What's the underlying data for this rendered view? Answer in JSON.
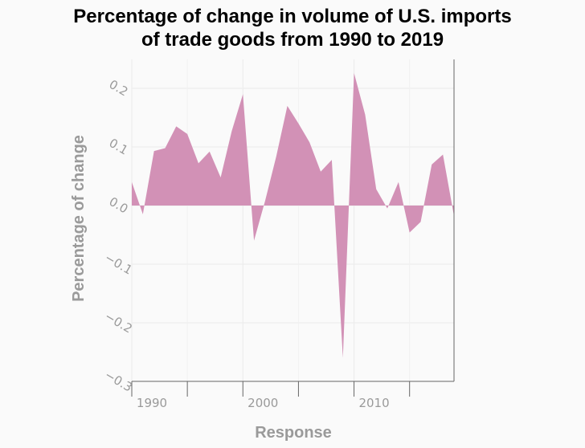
{
  "chart_data": {
    "type": "area",
    "title_line1": "Percentage of change in volume of U.S. imports",
    "title_line2": "of trade goods from 1990 to 2019",
    "xlabel": "Response",
    "ylabel": "Percentage of change",
    "xlim": [
      1990,
      2019
    ],
    "ylim": [
      -0.3,
      0.25
    ],
    "grid": true,
    "legend": "none",
    "fill_color": "#d291b6",
    "x_ticks": [
      1990,
      2000,
      2010
    ],
    "x_tick_labels": [
      "1990",
      "2000",
      "2010"
    ],
    "y_ticks": [
      0.2,
      0.1,
      0.0,
      -0.1,
      -0.2,
      -0.3
    ],
    "y_tick_labels": [
      "0.2",
      "0.1",
      "0.0",
      "−0.1",
      "−0.2",
      "−0.3"
    ],
    "series": [
      {
        "x": [
          1990,
          1991,
          1992,
          1993,
          1994,
          1995,
          1996,
          1997,
          1998,
          1999,
          2000,
          2001,
          2002,
          2003,
          2004,
          2005,
          2006,
          2007,
          2008,
          2009,
          2010,
          2011,
          2012,
          2013,
          2014,
          2015,
          2016,
          2017,
          2018,
          2019
        ],
        "values": [
          0.04,
          -0.015,
          0.093,
          0.098,
          0.135,
          0.122,
          0.072,
          0.092,
          0.048,
          0.127,
          0.19,
          -0.06,
          0.008,
          0.084,
          0.17,
          0.14,
          0.108,
          0.058,
          0.078,
          -0.26,
          0.226,
          0.155,
          0.028,
          -0.005,
          0.04,
          -0.046,
          -0.028,
          0.07,
          0.087,
          -0.018
        ]
      }
    ]
  }
}
